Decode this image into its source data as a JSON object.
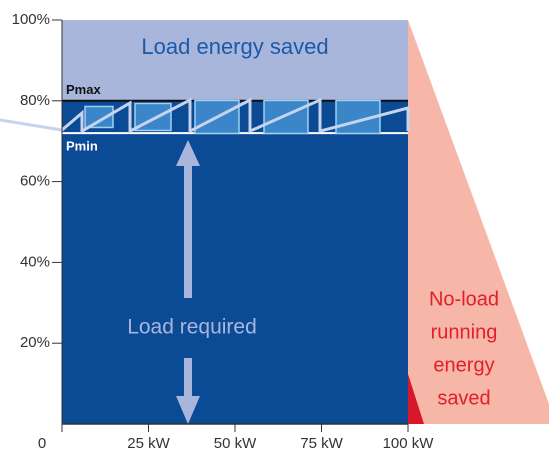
{
  "chart_data": {
    "type": "band",
    "ylim": [
      0,
      100
    ],
    "yticks": [
      {
        "value": 20,
        "label": "20%"
      },
      {
        "value": 40,
        "label": "40%"
      },
      {
        "value": 60,
        "label": "60%"
      },
      {
        "value": 80,
        "label": "80%"
      },
      {
        "value": 100,
        "label": "100%"
      }
    ],
    "xlim": [
      0,
      100
    ],
    "xticks": [
      0,
      {
        "value": 25,
        "label": "25 kW"
      },
      {
        "value": 50,
        "label": "50 kW"
      },
      {
        "value": 75,
        "label": "75 kW"
      },
      {
        "value": 100,
        "label": "100 kW"
      }
    ],
    "pmax": 80,
    "pmin": 72,
    "pmax_label": "Pmax",
    "pmin_label": "Pmin",
    "top_label": "Load energy saved",
    "load_label": "Load required",
    "noload_label": [
      "No-load",
      "running",
      "energy",
      "saved"
    ],
    "colors": {
      "saved": "#a9b6dc",
      "load": "#0b4a94",
      "noload": "#f7b7a8",
      "noload_text": "#e0202a"
    }
  }
}
